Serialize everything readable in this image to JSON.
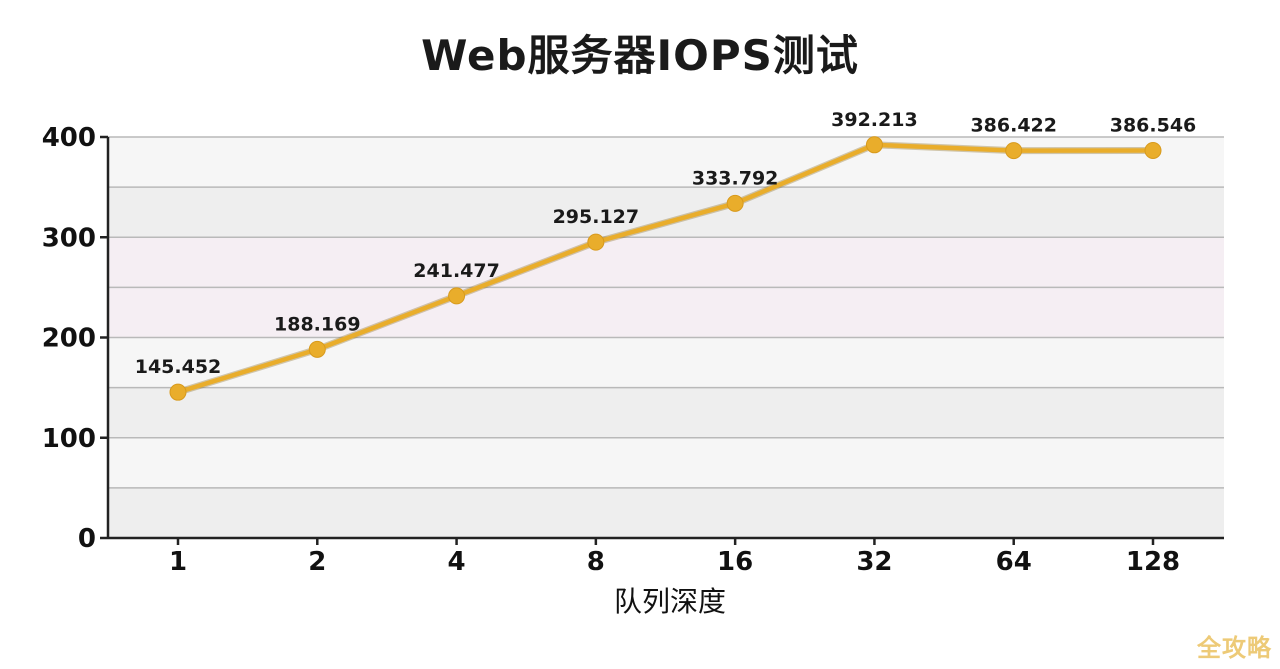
{
  "chart_data": {
    "type": "line",
    "title": "Web服务器IOPS测试",
    "xlabel": "队列深度",
    "ylabel": "",
    "categories": [
      "1",
      "2",
      "4",
      "8",
      "16",
      "32",
      "64",
      "128"
    ],
    "series": [
      {
        "values": [
          145.452,
          188.169,
          241.477,
          295.127,
          333.792,
          392.213,
          386.422,
          386.546
        ],
        "data_labels": [
          "145.452",
          "188.169",
          "241.477",
          "295.127",
          "333.792",
          "392.213",
          "386.422",
          "386.546"
        ],
        "color": "#e9ad2b"
      }
    ],
    "yticks": [
      "0",
      "100",
      "200",
      "300",
      "400"
    ],
    "ylim": [
      0,
      400
    ],
    "grid": true,
    "legend": "none",
    "band_colors": [
      "#eeeeee",
      "#f6f6f6",
      "#f5eef3"
    ]
  },
  "watermark": "全攻略"
}
